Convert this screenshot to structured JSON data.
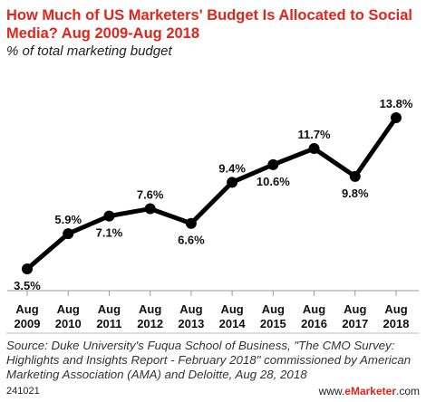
{
  "header": {
    "title": "How Much of US Marketers' Budget Is Allocated to Social Media? Aug 2009-Aug 2018",
    "subtitle": "% of total marketing budget"
  },
  "footer": {
    "source": "Source: Duke University's Fuqua School of Business, \"The CMO Survey: Highlights and Insights Report - February 2018\" commissioned by American Marketing Association (AMA) and Deloitte, Aug 28, 2018",
    "chart_id": "241021",
    "brand_prefix": "www.",
    "brand_name": "eMarketer",
    "brand_suffix": ".com"
  },
  "chart_data": {
    "type": "line",
    "title": "How Much of US Marketers' Budget Is Allocated to Social Media? Aug 2009-Aug 2018",
    "subtitle": "% of total marketing budget",
    "categories": [
      [
        "Aug",
        "2009"
      ],
      [
        "Aug",
        "2010"
      ],
      [
        "Aug",
        "2011"
      ],
      [
        "Aug",
        "2012"
      ],
      [
        "Aug",
        "2013"
      ],
      [
        "Aug",
        "2014"
      ],
      [
        "Aug",
        "2015"
      ],
      [
        "Aug",
        "2016"
      ],
      [
        "Aug",
        "2017"
      ],
      [
        "Aug",
        "2018"
      ]
    ],
    "series": [
      {
        "values": [
          3.5,
          5.9,
          7.1,
          7.6,
          6.6,
          9.4,
          10.6,
          11.7,
          9.8,
          13.8
        ],
        "labels": [
          "3.5%",
          "5.9%",
          "7.1%",
          "7.6%",
          "6.6%",
          "9.4%",
          "10.6%",
          "11.7%",
          "9.8%",
          "13.8%"
        ],
        "label_positions": [
          "below",
          "above",
          "below",
          "above",
          "below",
          "above",
          "below",
          "above",
          "below",
          "above"
        ]
      }
    ],
    "line_color": "#000000",
    "grid": false,
    "legend": "none"
  }
}
